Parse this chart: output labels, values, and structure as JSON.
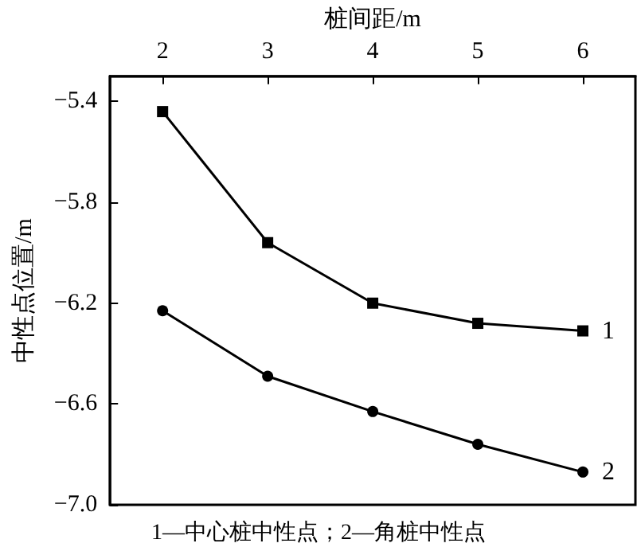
{
  "chart_data": {
    "type": "line",
    "xlabel": "桩间距/m",
    "ylabel": "中性点位置/m",
    "annotations": [
      "1—中心桩中性点；2—角桩中性点"
    ],
    "x": [
      2,
      3,
      4,
      5,
      6
    ],
    "xlim": [
      1.5,
      6.5
    ],
    "xticks": [
      2,
      3,
      4,
      5,
      6
    ],
    "ylim": [
      -7.0,
      -5.3
    ],
    "yticks": [
      -5.4,
      -5.8,
      -6.2,
      -6.6,
      {
        "value": -7.0,
        "label": "−7.0"
      }
    ],
    "grid": false,
    "legend": false,
    "line_style": "solid",
    "series": [
      {
        "name": "1",
        "color": "#000000",
        "marker": "square",
        "values": [
          -5.44,
          -5.96,
          -6.2,
          -6.28,
          -6.31
        ]
      },
      {
        "name": "2",
        "color": "#000000",
        "marker": "circle",
        "values": [
          -6.23,
          -6.49,
          -6.63,
          -6.76,
          -6.87
        ]
      }
    ]
  }
}
